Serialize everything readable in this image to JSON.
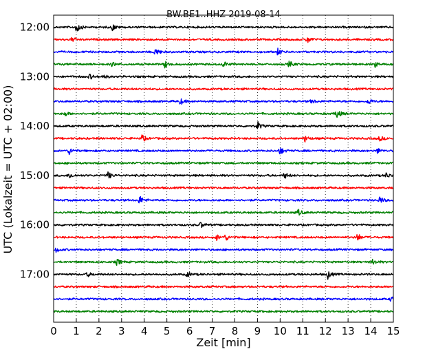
{
  "chart_data": {
    "type": "line",
    "title": "BW.BE1..HHZ 2019-08-14",
    "xlabel": "Zeit  [min]",
    "ylabel": "UTC (Lokalzeit = UTC + 02:00)",
    "xlim": [
      0,
      15
    ],
    "x_ticks": [
      "0",
      "1",
      "2",
      "3",
      "4",
      "5",
      "6",
      "7",
      "8",
      "9",
      "10",
      "11",
      "12",
      "13",
      "14",
      "15"
    ],
    "y_tick_labels": [
      "12:00",
      "13:00",
      "14:00",
      "15:00",
      "16:00",
      "17:00"
    ],
    "grid": "vertical dotted",
    "trace_colors": [
      "#000000",
      "#ff0000",
      "#0000ff",
      "#008000"
    ],
    "rows": [
      {
        "start": "12:00",
        "events": [
          {
            "t": 1.0,
            "a": 1.0
          },
          {
            "t": 2.6,
            "a": 0.5
          }
        ]
      },
      {
        "start": "12:15",
        "events": [
          {
            "t": 0.8,
            "a": 0.35
          },
          {
            "t": 11.2,
            "a": 0.6
          }
        ]
      },
      {
        "start": "12:30",
        "events": [
          {
            "t": 4.5,
            "a": 0.7
          },
          {
            "t": 9.9,
            "a": 0.5
          }
        ]
      },
      {
        "start": "12:45",
        "events": [
          {
            "t": 2.6,
            "a": 0.4
          },
          {
            "t": 4.9,
            "a": 0.6
          },
          {
            "t": 7.5,
            "a": 0.5
          },
          {
            "t": 10.4,
            "a": 0.5
          },
          {
            "t": 14.2,
            "a": 0.4
          }
        ]
      },
      {
        "start": "13:00",
        "events": [
          {
            "t": 1.6,
            "a": 0.4
          },
          {
            "t": 2.2,
            "a": 0.35
          }
        ]
      },
      {
        "start": "13:15",
        "events": []
      },
      {
        "start": "13:30",
        "events": [
          {
            "t": 5.6,
            "a": 0.5
          },
          {
            "t": 11.4,
            "a": 0.4
          },
          {
            "t": 13.9,
            "a": 0.5
          }
        ]
      },
      {
        "start": "13:45",
        "events": [
          {
            "t": 0.5,
            "a": 0.35
          },
          {
            "t": 12.5,
            "a": 0.8
          }
        ]
      },
      {
        "start": "14:00",
        "events": [
          {
            "t": 9.0,
            "a": 0.7
          }
        ]
      },
      {
        "start": "14:15",
        "events": [
          {
            "t": 3.9,
            "a": 0.6
          },
          {
            "t": 11.1,
            "a": 0.5
          },
          {
            "t": 14.4,
            "a": 0.4
          }
        ]
      },
      {
        "start": "14:30",
        "events": [
          {
            "t": 0.7,
            "a": 0.6
          },
          {
            "t": 10.0,
            "a": 0.6
          },
          {
            "t": 14.3,
            "a": 0.4
          }
        ]
      },
      {
        "start": "14:45",
        "events": []
      },
      {
        "start": "15:00",
        "events": [
          {
            "t": 0.7,
            "a": 0.45
          },
          {
            "t": 2.4,
            "a": 0.6
          },
          {
            "t": 10.2,
            "a": 0.5
          },
          {
            "t": 14.7,
            "a": 0.45
          }
        ]
      },
      {
        "start": "15:15",
        "events": []
      },
      {
        "start": "15:30",
        "events": [
          {
            "t": 3.8,
            "a": 0.7
          },
          {
            "t": 14.4,
            "a": 0.6
          }
        ]
      },
      {
        "start": "15:45",
        "events": [
          {
            "t": 10.8,
            "a": 0.5
          }
        ]
      },
      {
        "start": "16:00",
        "events": [
          {
            "t": 6.5,
            "a": 0.45
          }
        ]
      },
      {
        "start": "16:15",
        "events": [
          {
            "t": 7.2,
            "a": 0.45
          },
          {
            "t": 7.6,
            "a": 0.5
          },
          {
            "t": 13.4,
            "a": 0.7
          }
        ]
      },
      {
        "start": "16:30",
        "events": [
          {
            "t": 0.1,
            "a": 0.4
          }
        ]
      },
      {
        "start": "16:45",
        "events": [
          {
            "t": 2.8,
            "a": 0.5
          },
          {
            "t": 14.1,
            "a": 0.45
          }
        ]
      },
      {
        "start": "17:00",
        "events": [
          {
            "t": 1.5,
            "a": 0.35
          },
          {
            "t": 5.9,
            "a": 0.4
          },
          {
            "t": 12.1,
            "a": 0.7
          }
        ]
      },
      {
        "start": "17:15",
        "events": []
      },
      {
        "start": "17:30",
        "events": [
          {
            "t": 14.9,
            "a": 0.4
          }
        ]
      },
      {
        "start": "17:45",
        "events": []
      }
    ]
  }
}
